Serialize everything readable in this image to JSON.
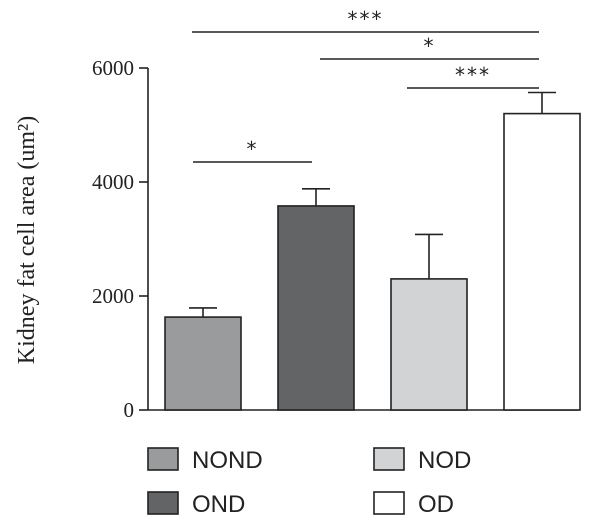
{
  "chart_data": {
    "type": "bar",
    "ylabel": "Kidney fat cell area (um²)",
    "ylim": [
      0,
      6000
    ],
    "yticks": [
      0,
      2000,
      4000,
      6000
    ],
    "grid": false,
    "categories": [
      "NOND",
      "OND",
      "NOD",
      "OD"
    ],
    "values": [
      1630,
      3580,
      2300,
      5200
    ],
    "errors": [
      160,
      300,
      780,
      370
    ],
    "colors": [
      "#9a9b9d",
      "#636466",
      "#d2d3d5",
      "#ffffff"
    ],
    "significance": [
      {
        "from": 0,
        "to": 1,
        "label": "*"
      },
      {
        "from": 2,
        "to": 3,
        "label": "***"
      },
      {
        "from": 1,
        "to": 3,
        "label": "*"
      },
      {
        "from": 0,
        "to": 3,
        "label": "***"
      }
    ],
    "legend": {
      "placement": "bottom",
      "entries": [
        "NOND",
        "NOD",
        "OND",
        "OD"
      ]
    }
  }
}
